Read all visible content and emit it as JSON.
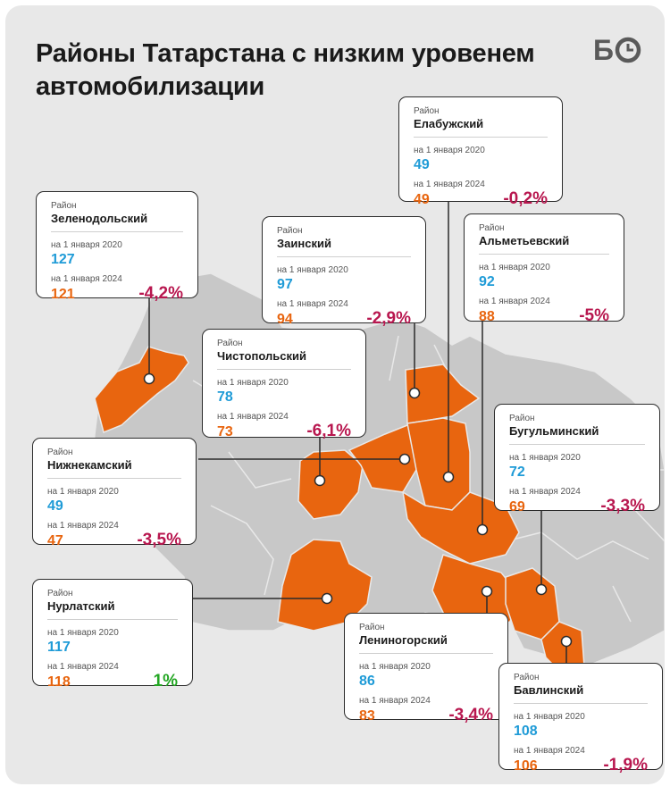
{
  "title": "Районы Татарстана с низким уровенем автомобилизации",
  "logo": "БО",
  "colors": {
    "highlight": "#e8650f",
    "base_region": "#c8c8c8",
    "value_2020": "#1f9bd7",
    "value_2024": "#e8650f",
    "decline": "#b8174f",
    "growth": "#23a623"
  },
  "labels": {
    "district": "Район",
    "date_2020": "на 1 января 2020",
    "date_2024": "на 1 января 2024"
  },
  "districts": [
    {
      "name": "Зеленодольский",
      "v2020": "127",
      "v2024": "121",
      "change": "-4,2%",
      "trend": "down"
    },
    {
      "name": "Елабужский",
      "v2020": "49",
      "v2024": "49",
      "change": "-0,2%",
      "trend": "down"
    },
    {
      "name": "Заинский",
      "v2020": "97",
      "v2024": "94",
      "change": "-2,9%",
      "trend": "down"
    },
    {
      "name": "Альметьевский",
      "v2020": "92",
      "v2024": "88",
      "change": "-5%",
      "trend": "down"
    },
    {
      "name": "Чистопольский",
      "v2020": "78",
      "v2024": "73",
      "change": "-6,1%",
      "trend": "down"
    },
    {
      "name": "Нижнекамский",
      "v2020": "49",
      "v2024": "47",
      "change": "-3,5%",
      "trend": "down"
    },
    {
      "name": "Бугульминский",
      "v2020": "72",
      "v2024": "69",
      "change": "-3,3%",
      "trend": "down"
    },
    {
      "name": "Нурлатский",
      "v2020": "117",
      "v2024": "118",
      "change": "1%",
      "trend": "up"
    },
    {
      "name": "Лениногорский",
      "v2020": "86",
      "v2024": "83",
      "change": "-3,4%",
      "trend": "down"
    },
    {
      "name": "Бавлинский",
      "v2020": "108",
      "v2024": "106",
      "change": "-1,9%",
      "trend": "down"
    }
  ]
}
